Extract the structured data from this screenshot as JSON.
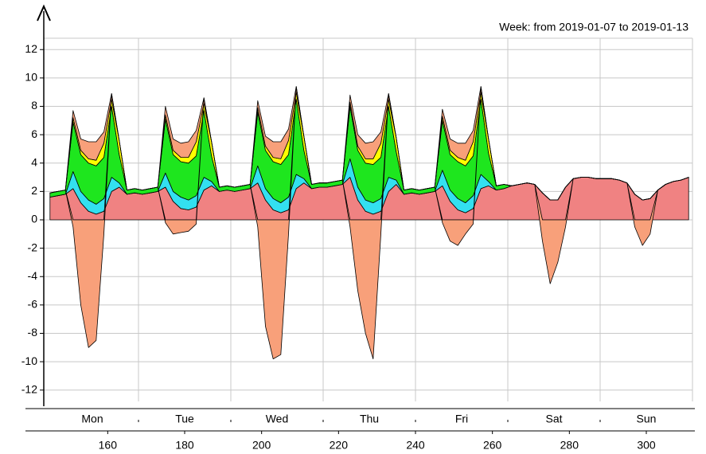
{
  "chart_data": {
    "type": "stacked_area",
    "title": "Week: from 2019-01-07 to 2019-01-13",
    "categories": [
      "Mon",
      "Tue",
      "Wed",
      "Thu",
      "Fri",
      "Sat",
      "Sun"
    ],
    "x": [
      145,
      147,
      149,
      151,
      153,
      155,
      157,
      159,
      161,
      163,
      165,
      167,
      169,
      171,
      173,
      175,
      177,
      179,
      181,
      183,
      185,
      187,
      189,
      191,
      193,
      195,
      197,
      199,
      201,
      203,
      205,
      207,
      209,
      211,
      213,
      215,
      217,
      219,
      221,
      223,
      225,
      227,
      229,
      231,
      233,
      235,
      237,
      239,
      241,
      243,
      245,
      247,
      249,
      251,
      253,
      255,
      257,
      259,
      261,
      263,
      265,
      267,
      269,
      271,
      273,
      275,
      277,
      279,
      281,
      283,
      285,
      287,
      289,
      291,
      293,
      295,
      297,
      299,
      301,
      303,
      305,
      307,
      309,
      311
    ],
    "xlim": [
      144,
      312
    ],
    "xticks": [
      160,
      180,
      200,
      220,
      240,
      260,
      280,
      300
    ],
    "ylim": [
      -12.8,
      12.8
    ],
    "yticks": [
      -12,
      -10,
      -8,
      -6,
      -4,
      -2,
      0,
      2,
      4,
      6,
      8,
      10,
      12
    ],
    "grid": true,
    "series": [
      {
        "color": "#f08282",
        "values": [
          1.6,
          1.7,
          1.8,
          2.2,
          1.2,
          0.6,
          0.4,
          0.6,
          2.0,
          2.3,
          1.8,
          1.9,
          1.8,
          1.9,
          2.0,
          2.3,
          1.3,
          0.8,
          0.7,
          0.9,
          2.1,
          2.4,
          2.0,
          2.1,
          2.0,
          2.1,
          2.2,
          2.6,
          1.4,
          0.7,
          0.5,
          0.7,
          2.2,
          2.6,
          2.2,
          2.3,
          2.3,
          2.4,
          2.5,
          3.0,
          1.4,
          0.6,
          0.4,
          0.6,
          2.0,
          2.5,
          1.8,
          1.9,
          1.8,
          1.9,
          2.0,
          2.4,
          1.3,
          0.7,
          0.5,
          0.8,
          2.2,
          2.4,
          2.1,
          2.2,
          2.4,
          2.5,
          2.6,
          2.5,
          1.9,
          1.4,
          1.4,
          2.3,
          2.9,
          3.0,
          3.0,
          2.9,
          2.9,
          2.9,
          2.8,
          2.6,
          1.8,
          1.4,
          1.5,
          2.1,
          2.5,
          2.7,
          2.8,
          3.0
        ]
      },
      {
        "color": "#33e0f0",
        "values": [
          0,
          0,
          0,
          1.2,
          0.8,
          0.8,
          0.7,
          0.9,
          1.0,
          0.3,
          0,
          0,
          0,
          0,
          0,
          1.0,
          0.7,
          0.8,
          0.7,
          0.8,
          0.9,
          0.3,
          0,
          0,
          0,
          0,
          0,
          1.2,
          0.8,
          0.8,
          0.7,
          0.9,
          1.0,
          0.3,
          0,
          0,
          0,
          0,
          0,
          1.3,
          0.9,
          0.8,
          0.8,
          0.9,
          1.0,
          0.3,
          0,
          0,
          0,
          0,
          0,
          1.1,
          0.8,
          0.8,
          0.7,
          0.9,
          1.0,
          0.3,
          0,
          0,
          0,
          0,
          0,
          0,
          0,
          0,
          0,
          0,
          0,
          0,
          0,
          0,
          0,
          0,
          0,
          0,
          0,
          0,
          0,
          0,
          0,
          0,
          0,
          0
        ]
      },
      {
        "color": "#1ee61e",
        "values": [
          0.3,
          0.3,
          0.3,
          3.5,
          2.6,
          2.6,
          2.7,
          2.9,
          5.0,
          2.0,
          0.3,
          0.3,
          0.3,
          0.3,
          0.3,
          3.8,
          2.6,
          2.5,
          2.6,
          2.8,
          4.7,
          1.8,
          0.3,
          0.3,
          0.3,
          0.3,
          0.3,
          3.8,
          2.7,
          2.6,
          2.7,
          3.0,
          5.3,
          2.0,
          0.3,
          0.3,
          0.3,
          0.3,
          0.3,
          3.7,
          2.6,
          2.6,
          2.7,
          2.9,
          5.0,
          2.0,
          0.3,
          0.3,
          0.3,
          0.3,
          0.3,
          3.5,
          2.5,
          2.6,
          2.6,
          2.8,
          5.3,
          2.0,
          0.3,
          0.3,
          0,
          0,
          0,
          0,
          0,
          0,
          0,
          0,
          0,
          0,
          0,
          0,
          0,
          0,
          0,
          0,
          0,
          0,
          0,
          0,
          0,
          0,
          0,
          0
        ]
      },
      {
        "color": "#ffff00",
        "values": [
          0,
          0,
          0,
          0.3,
          0.3,
          0.3,
          0.4,
          1.0,
          0.5,
          1.0,
          0,
          0,
          0,
          0,
          0,
          0.3,
          0.3,
          0.3,
          0.4,
          1.0,
          0.5,
          1.0,
          0,
          0,
          0,
          0,
          0,
          0.3,
          0.3,
          0.3,
          0.4,
          1.0,
          0.5,
          1.0,
          0,
          0,
          0,
          0,
          0,
          0.3,
          0.3,
          0.3,
          0.4,
          1.0,
          0.5,
          1.0,
          0,
          0,
          0,
          0,
          0,
          0.3,
          0.3,
          0.3,
          0.4,
          1.0,
          0.5,
          1.0,
          0,
          0,
          0,
          0,
          0,
          0,
          0,
          0,
          0,
          0,
          0,
          0,
          0,
          0,
          0,
          0,
          0,
          0,
          0,
          0,
          0,
          0,
          0,
          0,
          0,
          0
        ]
      },
      {
        "color": "#f8a07a",
        "values": [
          0,
          0,
          0,
          0.5,
          0.8,
          1.2,
          1.3,
          0.8,
          0.4,
          0,
          0,
          0,
          0,
          0,
          0,
          0.6,
          0.8,
          1.0,
          1.1,
          0.8,
          0.4,
          0,
          0,
          0,
          0,
          0,
          0,
          0.5,
          0.7,
          1.1,
          1.2,
          0.8,
          0.4,
          0,
          0,
          0,
          0,
          0,
          0,
          0.5,
          0.8,
          1.1,
          1.2,
          0.8,
          0.4,
          0,
          0,
          0,
          0,
          0,
          0,
          0.5,
          0.8,
          1.0,
          1.2,
          0.8,
          0.4,
          0,
          0,
          0,
          0,
          0,
          0,
          0,
          0,
          0,
          0,
          0,
          0,
          0,
          0,
          0,
          0,
          0,
          0,
          0,
          0,
          0,
          0,
          0,
          0,
          0,
          0,
          0
        ]
      },
      {
        "color": "#f8a07a",
        "values": [
          0,
          0,
          0,
          -0.5,
          -6,
          -9,
          -8.5,
          -1,
          0,
          0,
          0,
          0,
          0,
          0,
          0,
          -0.2,
          -1,
          -0.9,
          -0.8,
          -0.3,
          0,
          0,
          0,
          0,
          0,
          0,
          0,
          -0.5,
          -7.5,
          -9.8,
          -9.5,
          -1,
          0,
          0,
          0,
          0,
          0,
          0,
          0,
          -0.5,
          -5,
          -8,
          -9.8,
          -1,
          0,
          0,
          0,
          0,
          0,
          0,
          0,
          -0.2,
          -1.5,
          -1.8,
          -1,
          -0.3,
          0,
          0,
          0,
          0,
          0,
          0,
          0,
          0,
          -1.5,
          -4.5,
          -3,
          -0.5,
          0,
          0,
          0,
          0,
          0,
          0,
          0,
          0,
          -0.5,
          -1.8,
          -1,
          0,
          0,
          0,
          0,
          0
        ]
      }
    ]
  }
}
